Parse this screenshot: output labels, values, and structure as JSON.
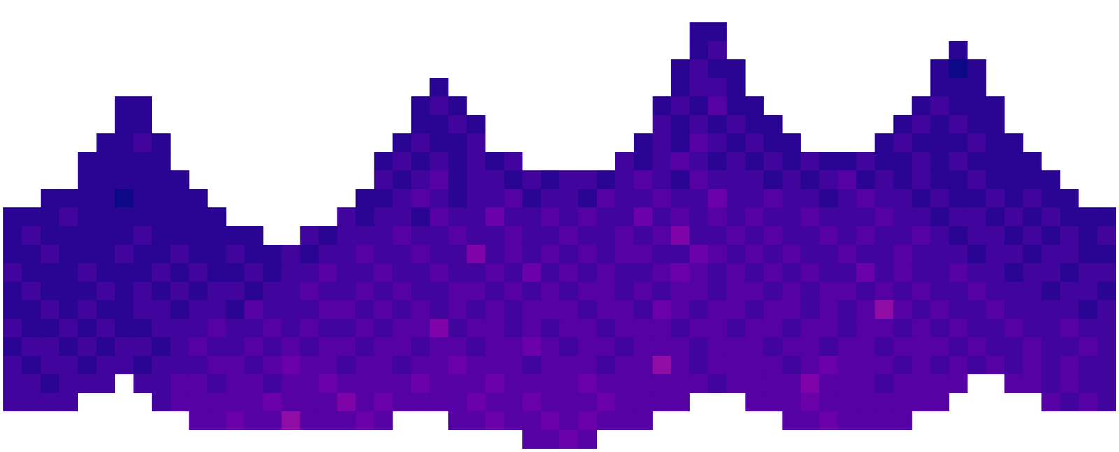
{
  "chart_data": {
    "type": "heatmap",
    "tick_labels": false,
    "color": "plasma",
    "zlim": [
      0,
      20
    ],
    "z": [
      [
        null,
        null,
        null,
        null,
        null,
        null,
        null,
        null,
        null,
        null,
        null,
        null,
        null,
        null,
        null,
        null,
        null,
        null,
        null,
        null,
        null,
        null,
        null,
        null,
        null,
        null,
        null,
        null,
        null,
        null,
        null,
        null,
        null,
        null,
        null,
        null,
        null,
        null,
        null,
        null,
        null,
        null,
        null,
        null,
        null,
        null,
        null,
        null,
        null,
        null,
        null,
        null,
        null,
        null,
        null,
        null,
        null,
        null,
        null,
        null
      ],
      [
        null,
        null,
        null,
        null,
        null,
        null,
        null,
        null,
        null,
        null,
        null,
        null,
        null,
        null,
        null,
        null,
        null,
        null,
        null,
        null,
        null,
        null,
        null,
        null,
        null,
        null,
        null,
        null,
        null,
        null,
        null,
        null,
        null,
        null,
        null,
        null,
        null,
        1,
        1,
        null,
        null,
        null,
        null,
        null,
        null,
        null,
        null,
        null,
        null,
        null,
        null,
        null,
        null,
        null,
        null,
        null,
        null,
        null,
        null,
        null
      ],
      [
        null,
        null,
        null,
        null,
        null,
        null,
        null,
        null,
        null,
        null,
        null,
        null,
        null,
        null,
        null,
        null,
        null,
        null,
        null,
        null,
        null,
        null,
        null,
        null,
        null,
        null,
        null,
        null,
        null,
        null,
        null,
        null,
        null,
        null,
        null,
        null,
        null,
        1,
        2,
        null,
        null,
        null,
        null,
        null,
        null,
        null,
        null,
        null,
        null,
        null,
        null,
        1,
        null,
        null,
        null,
        null,
        null,
        null,
        null,
        null
      ],
      [
        null,
        null,
        null,
        null,
        null,
        null,
        null,
        null,
        null,
        null,
        null,
        null,
        null,
        null,
        null,
        null,
        null,
        null,
        null,
        null,
        null,
        null,
        null,
        null,
        null,
        null,
        null,
        null,
        null,
        null,
        null,
        null,
        null,
        null,
        null,
        null,
        1,
        2,
        1,
        1,
        null,
        null,
        null,
        null,
        null,
        null,
        null,
        null,
        null,
        null,
        1,
        0,
        1,
        null,
        null,
        null,
        null,
        null,
        null,
        null
      ],
      [
        null,
        null,
        null,
        null,
        null,
        null,
        null,
        null,
        null,
        null,
        null,
        null,
        null,
        null,
        null,
        null,
        null,
        null,
        null,
        null,
        null,
        null,
        null,
        1,
        null,
        null,
        null,
        null,
        null,
        null,
        null,
        null,
        null,
        null,
        null,
        null,
        1,
        2,
        2,
        1,
        null,
        null,
        null,
        null,
        null,
        null,
        null,
        null,
        null,
        null,
        1,
        1,
        1,
        null,
        null,
        null,
        null,
        null,
        null,
        null
      ],
      [
        null,
        null,
        null,
        null,
        null,
        null,
        1,
        1,
        null,
        null,
        null,
        null,
        null,
        null,
        null,
        null,
        null,
        null,
        null,
        null,
        null,
        null,
        1,
        2,
        1,
        null,
        null,
        null,
        null,
        null,
        null,
        null,
        null,
        null,
        null,
        1,
        2,
        1,
        3,
        1,
        1,
        null,
        null,
        null,
        null,
        null,
        null,
        null,
        null,
        1,
        2,
        1,
        1,
        1,
        null,
        null,
        null,
        null,
        null,
        null
      ],
      [
        null,
        null,
        null,
        null,
        null,
        null,
        1,
        1,
        null,
        null,
        null,
        null,
        null,
        null,
        null,
        null,
        null,
        null,
        null,
        null,
        null,
        null,
        1,
        1,
        2,
        1,
        null,
        null,
        null,
        null,
        null,
        null,
        null,
        null,
        null,
        2,
        1,
        2,
        1,
        2,
        1,
        1,
        null,
        null,
        null,
        null,
        null,
        null,
        1,
        2,
        1,
        2,
        1,
        1,
        null,
        null,
        null,
        null,
        null,
        null
      ],
      [
        null,
        null,
        null,
        null,
        null,
        1,
        1,
        2,
        1,
        null,
        null,
        null,
        null,
        null,
        null,
        null,
        null,
        null,
        null,
        null,
        null,
        1,
        2,
        1,
        1,
        2,
        null,
        null,
        null,
        null,
        null,
        null,
        null,
        null,
        1,
        2,
        1,
        3,
        2,
        1,
        2,
        1,
        1,
        null,
        null,
        null,
        null,
        1,
        2,
        1,
        1,
        1,
        2,
        1,
        1,
        null,
        null,
        null,
        null,
        null
      ],
      [
        null,
        null,
        null,
        null,
        1,
        1,
        1,
        1,
        1,
        null,
        null,
        null,
        null,
        null,
        null,
        null,
        null,
        null,
        null,
        null,
        1,
        2,
        1,
        2,
        1,
        2,
        1,
        2,
        null,
        null,
        null,
        null,
        null,
        2,
        1,
        2,
        3,
        2,
        1,
        2,
        1,
        2,
        1,
        2,
        1,
        1,
        2,
        1,
        1,
        2,
        1,
        2,
        1,
        1,
        1,
        1,
        null,
        null,
        null,
        null
      ],
      [
        null,
        null,
        null,
        null,
        1,
        1,
        1,
        1,
        1,
        1,
        null,
        null,
        null,
        null,
        null,
        null,
        null,
        null,
        null,
        null,
        2,
        1,
        2,
        3,
        1,
        2,
        2,
        1,
        2,
        1,
        2,
        2,
        1,
        2,
        3,
        2,
        1,
        3,
        2,
        2,
        2,
        1,
        2,
        1,
        2,
        3,
        1,
        2,
        1,
        2,
        1,
        1,
        2,
        1,
        1,
        1,
        1,
        null,
        null,
        null
      ],
      [
        null,
        null,
        1,
        1,
        1,
        1,
        0,
        1,
        1,
        1,
        1,
        null,
        null,
        null,
        null,
        null,
        null,
        null,
        null,
        1,
        1,
        2,
        3,
        2,
        1,
        2,
        2,
        3,
        1,
        2,
        2,
        1,
        3,
        2,
        2,
        3,
        2,
        2,
        4,
        2,
        2,
        3,
        2,
        2,
        1,
        2,
        3,
        2,
        2,
        1,
        2,
        1,
        1,
        2,
        1,
        2,
        1,
        1,
        null,
        null
      ],
      [
        1,
        1,
        1,
        2,
        1,
        1,
        1,
        1,
        1,
        1,
        1,
        1,
        null,
        null,
        null,
        null,
        null,
        null,
        2,
        1,
        2,
        2,
        1,
        3,
        2,
        2,
        4,
        2,
        2,
        3,
        2,
        3,
        2,
        2,
        4,
        2,
        3,
        2,
        3,
        2,
        3,
        2,
        2,
        3,
        2,
        2,
        2,
        3,
        2,
        2,
        1,
        2,
        2,
        1,
        2,
        1,
        2,
        1,
        1,
        1
      ],
      [
        1,
        2,
        1,
        1,
        1,
        1,
        1,
        2,
        1,
        1,
        1,
        1,
        1,
        1,
        null,
        null,
        2,
        1,
        2,
        2,
        2,
        3,
        2,
        2,
        3,
        2,
        2,
        3,
        2,
        2,
        3,
        2,
        2,
        3,
        2,
        3,
        5,
        2,
        2,
        3,
        2,
        3,
        2,
        2,
        3,
        2,
        3,
        2,
        2,
        3,
        2,
        1,
        2,
        2,
        1,
        2,
        1,
        2,
        1,
        2
      ],
      [
        1,
        1,
        2,
        1,
        1,
        1,
        2,
        1,
        1,
        2,
        1,
        1,
        2,
        1,
        1,
        2,
        1,
        2,
        2,
        3,
        2,
        2,
        3,
        2,
        2,
        5,
        2,
        3,
        2,
        3,
        2,
        3,
        2,
        3,
        3,
        2,
        2,
        4,
        3,
        2,
        3,
        2,
        3,
        2,
        2,
        3,
        2,
        2,
        3,
        2,
        2,
        2,
        1,
        2,
        2,
        1,
        2,
        2,
        1,
        1
      ],
      [
        2,
        1,
        1,
        1,
        2,
        1,
        1,
        1,
        2,
        1,
        2,
        1,
        1,
        2,
        1,
        2,
        2,
        3,
        2,
        2,
        3,
        2,
        2,
        3,
        2,
        2,
        3,
        2,
        4,
        2,
        3,
        2,
        3,
        2,
        2,
        3,
        4,
        3,
        2,
        3,
        2,
        3,
        2,
        3,
        2,
        2,
        4,
        2,
        3,
        2,
        2,
        3,
        2,
        2,
        1,
        2,
        2,
        1,
        2,
        2
      ],
      [
        1,
        2,
        1,
        1,
        1,
        2,
        1,
        2,
        1,
        2,
        1,
        2,
        2,
        1,
        2,
        2,
        3,
        2,
        2,
        3,
        2,
        3,
        2,
        2,
        3,
        3,
        2,
        3,
        2,
        3,
        2,
        3,
        3,
        2,
        3,
        2,
        3,
        3,
        2,
        3,
        3,
        2,
        3,
        2,
        3,
        3,
        2,
        3,
        2,
        3,
        2,
        2,
        3,
        2,
        2,
        2,
        1,
        2,
        2,
        1
      ],
      [
        1,
        1,
        2,
        1,
        2,
        1,
        1,
        2,
        2,
        1,
        2,
        2,
        1,
        3,
        2,
        2,
        2,
        3,
        3,
        2,
        3,
        2,
        3,
        2,
        3,
        2,
        3,
        2,
        3,
        3,
        3,
        2,
        3,
        3,
        2,
        4,
        3,
        2,
        3,
        3,
        2,
        3,
        3,
        2,
        3,
        2,
        3,
        6,
        3,
        2,
        3,
        2,
        2,
        3,
        2,
        2,
        2,
        2,
        1,
        2
      ],
      [
        2,
        1,
        1,
        2,
        1,
        2,
        1,
        1,
        2,
        2,
        2,
        3,
        2,
        2,
        3,
        2,
        3,
        2,
        2,
        3,
        2,
        3,
        3,
        5,
        2,
        3,
        3,
        2,
        3,
        2,
        3,
        3,
        2,
        3,
        3,
        3,
        2,
        3,
        3,
        2,
        3,
        3,
        2,
        3,
        3,
        2,
        3,
        3,
        2,
        3,
        2,
        3,
        2,
        2,
        3,
        2,
        2,
        3,
        2,
        2
      ],
      [
        1,
        2,
        2,
        1,
        2,
        1,
        2,
        2,
        1,
        2,
        3,
        2,
        2,
        3,
        2,
        3,
        2,
        3,
        3,
        2,
        3,
        3,
        2,
        3,
        3,
        2,
        3,
        3,
        4,
        3,
        2,
        3,
        3,
        2,
        3,
        3,
        3,
        2,
        3,
        3,
        3,
        2,
        3,
        3,
        2,
        3,
        3,
        2,
        3,
        3,
        3,
        2,
        3,
        2,
        2,
        3,
        2,
        2,
        3,
        2
      ],
      [
        2,
        1,
        2,
        2,
        1,
        2,
        2,
        1,
        2,
        2,
        2,
        3,
        3,
        2,
        3,
        4,
        3,
        3,
        2,
        3,
        3,
        2,
        3,
        3,
        4,
        3,
        3,
        3,
        2,
        3,
        3,
        3,
        2,
        3,
        3,
        6,
        3,
        2,
        3,
        3,
        3,
        3,
        2,
        3,
        4,
        3,
        3,
        3,
        2,
        3,
        2,
        3,
        2,
        3,
        2,
        3,
        2,
        3,
        2,
        2
      ],
      [
        2,
        2,
        1,
        2,
        2,
        2,
        null,
        2,
        2,
        3,
        3,
        2,
        3,
        3,
        2,
        3,
        3,
        4,
        3,
        3,
        3,
        3,
        4,
        3,
        3,
        3,
        4,
        3,
        3,
        3,
        3,
        4,
        3,
        3,
        3,
        3,
        3,
        3,
        2,
        3,
        3,
        3,
        3,
        5,
        3,
        3,
        3,
        2,
        3,
        3,
        3,
        3,
        null,
        null,
        3,
        3,
        2,
        3,
        2,
        2
      ],
      [
        2,
        2,
        2,
        2,
        null,
        null,
        null,
        null,
        2,
        3,
        3,
        3,
        3,
        3,
        4,
        3,
        3,
        3,
        5,
        3,
        4,
        3,
        3,
        3,
        3,
        4,
        3,
        3,
        4,
        3,
        3,
        3,
        4,
        3,
        3,
        3,
        3,
        null,
        null,
        null,
        3,
        3,
        3,
        4,
        3,
        3,
        3,
        3,
        3,
        3,
        3,
        null,
        null,
        null,
        null,
        null,
        3,
        2,
        3,
        2
      ],
      [
        null,
        null,
        null,
        null,
        null,
        null,
        null,
        null,
        null,
        null,
        3,
        3,
        4,
        3,
        3,
        6,
        3,
        3,
        3,
        4,
        3,
        null,
        null,
        null,
        3,
        3,
        4,
        3,
        3,
        4,
        3,
        4,
        3,
        3,
        3,
        null,
        null,
        null,
        null,
        null,
        null,
        null,
        3,
        3,
        4,
        3,
        3,
        3,
        3,
        null,
        null,
        null,
        null,
        null,
        null,
        null,
        null,
        null,
        null,
        null
      ],
      [
        null,
        null,
        null,
        null,
        null,
        null,
        null,
        null,
        null,
        null,
        null,
        null,
        null,
        null,
        null,
        null,
        null,
        null,
        null,
        null,
        null,
        null,
        null,
        null,
        null,
        null,
        null,
        null,
        3,
        3,
        4,
        3,
        null,
        null,
        null,
        null,
        null,
        null,
        null,
        null,
        null,
        null,
        null,
        null,
        null,
        null,
        null,
        null,
        null,
        null,
        null,
        null,
        null,
        null,
        null,
        null,
        null,
        null,
        null,
        null
      ]
    ]
  }
}
